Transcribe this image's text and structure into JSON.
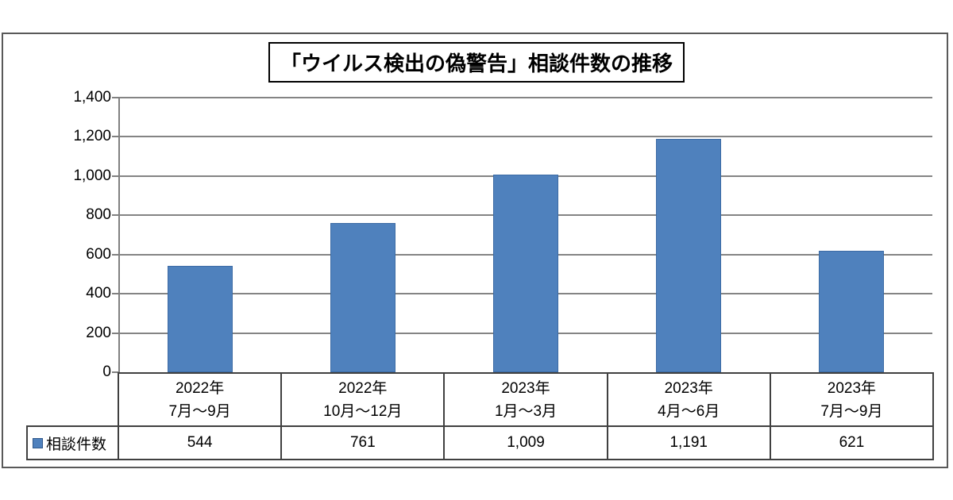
{
  "page": {
    "background": "#ffffff"
  },
  "frame": {
    "border_color": "#595959"
  },
  "title_box": {
    "text": "「ウイルス検出の偽警告」相談件数の推移",
    "border_color": "#000000"
  },
  "legend": {
    "label": "相談件数",
    "swatch_color": "#4F81BD"
  },
  "chart_data": {
    "type": "bar",
    "title": "「ウイルス検出の偽警告」相談件数の推移",
    "series": [
      {
        "name": "相談件数",
        "values": [
          544,
          761,
          1009,
          1191,
          621
        ]
      }
    ],
    "categories": [
      "2022年\n7月～9月",
      "2022年\n10月～12月",
      "2023年\n1月～3月",
      "2023年\n4月～6月",
      "2023年\n7月～9月"
    ],
    "value_labels": [
      "544",
      "761",
      "1,009",
      "1,191",
      "621"
    ],
    "xlabel": "",
    "ylabel": "",
    "ylim": [
      0,
      1400
    ],
    "ytick_interval": 200,
    "ytick_labels": [
      "0",
      "200",
      "400",
      "600",
      "800",
      "1,000",
      "1,200",
      "1,400"
    ],
    "grid": true,
    "legend_position": "bottom-table-left",
    "bar_color": "#4F81BD",
    "gridline_color": "#848484",
    "data_table_shown": true
  }
}
